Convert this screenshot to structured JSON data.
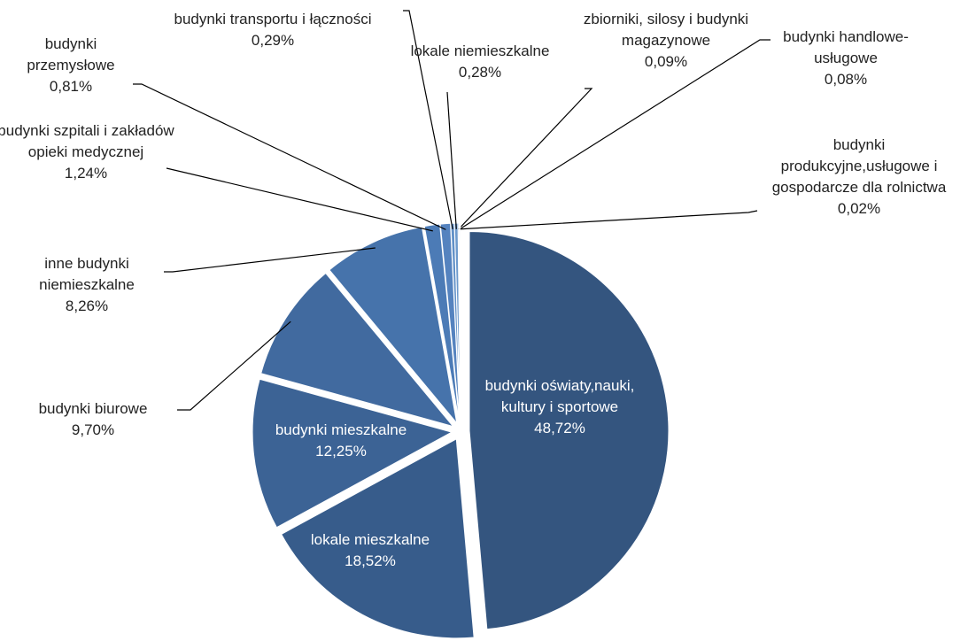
{
  "chart_data": {
    "type": "pie",
    "categories": [
      "budynki oświaty,nauki, kultury i sportowe",
      "lokale mieszkalne",
      "budynki mieszkalne",
      "budynki biurowe",
      "inne budynki niemieszkalne",
      "budynki szpitali i zakładów opieki medycznej",
      "budynki przemysłowe",
      "budynki transportu i łączności",
      "lokale niemieszkalne",
      "zbiorniki, silosy i budynki magazynowe",
      "budynki handlowe-usługowe",
      "budynki produkcyjne,usługowe i gospodarcze dla rolnictwa"
    ],
    "values": [
      48.72,
      18.52,
      12.25,
      9.7,
      8.26,
      1.24,
      0.81,
      0.29,
      0.28,
      0.09,
      0.08,
      0.02
    ],
    "value_labels": [
      "48,72%",
      "18,52%",
      "12,25%",
      "9,70%",
      "8,26%",
      "1,24%",
      "0,81%",
      "0,29%",
      "0,28%",
      "0,09%",
      "0,08%",
      "0,02%"
    ],
    "colors": [
      "#34557f",
      "#375c8b",
      "#3c6395",
      "#416a9f",
      "#4673ab",
      "#4c7bb6",
      "#5583bf",
      "#6190c7",
      "#6d9acd",
      "#7aa4d3",
      "#88aed8",
      "#97b9de"
    ]
  }
}
